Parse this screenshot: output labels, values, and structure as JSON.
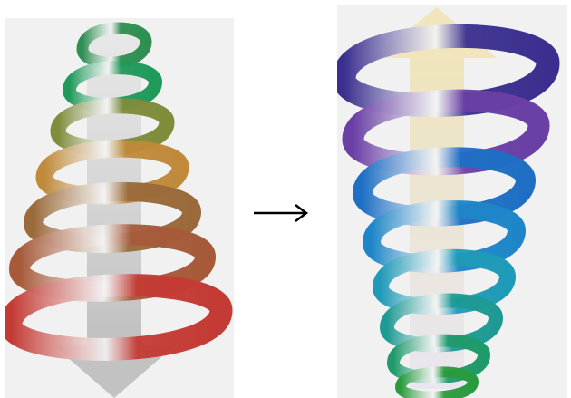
{
  "diagram": {
    "left_spiral": {
      "direction_arrow": "down-arrow",
      "arrow_color": "#c7c7c7",
      "band_colors": [
        "#2f8f52",
        "#1f9a5a",
        "#7f8c3a",
        "#c08a3a",
        "#9a6a3a",
        "#a65a3a",
        "#c43a34"
      ]
    },
    "transition_arrow": {
      "icon": "right-arrow"
    },
    "right_spiral": {
      "direction_arrow": "up-arrow",
      "arrow_color": "#efe4b8",
      "band_colors": [
        "#3a2f8f",
        "#6a3fa6",
        "#1e6fc4",
        "#1e86c8",
        "#1f9ab8",
        "#1e9a94",
        "#1f9a6a",
        "#2a9a3f"
      ]
    }
  }
}
